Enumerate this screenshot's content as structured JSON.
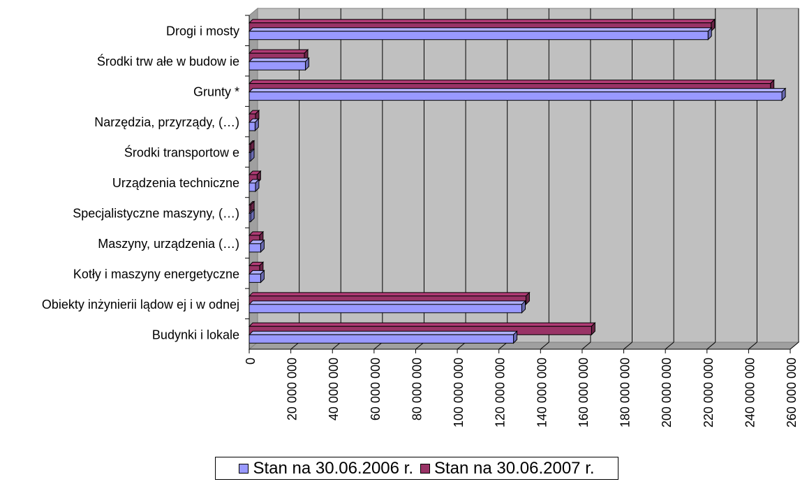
{
  "chart_data": {
    "type": "bar",
    "orientation": "horizontal",
    "three_d": true,
    "categories": [
      "Drogi i mosty",
      "Środki trw ałe w  budow ie",
      "Grunty *",
      "Narzędzia, przyrządy, (…)",
      "Środki transportow e",
      "Urządzenia techniczne",
      "Specjalistyczne maszyny, (…)",
      "Maszyny, urządzenia (…)",
      "Kotły i maszyny energetyczne",
      "Obiekty inżynierii lądow ej i w odnej",
      "Budynki i lokale"
    ],
    "series": [
      {
        "name": "Stan na 30.06.2006 r.",
        "color": "#9999ff",
        "values": [
          220500000,
          27000000,
          256000000,
          2800000,
          500000,
          3000000,
          700000,
          5500000,
          5500000,
          131000000,
          127000000
        ]
      },
      {
        "name": "Stan na 30.06.2007 r.",
        "color": "#993366",
        "values": [
          222000000,
          26500000,
          250500000,
          3000000,
          500000,
          3800000,
          700000,
          5000000,
          5000000,
          133000000,
          164500000
        ]
      }
    ],
    "xlim": [
      0,
      260000000
    ],
    "xticks": [
      0,
      20000000,
      40000000,
      60000000,
      80000000,
      100000000,
      120000000,
      140000000,
      160000000,
      180000000,
      200000000,
      220000000,
      240000000,
      260000000
    ],
    "xtick_labels": [
      "0",
      "20 000 000",
      "40 000 000",
      "60 000 000",
      "80 000 000",
      "100 000 000",
      "120 000 000",
      "140 000 000",
      "160 000 000",
      "180 000 000",
      "200 000 000",
      "220 000 000",
      "240 000 000",
      "260 000 000"
    ],
    "grid": "vertical",
    "legend_position": "bottom"
  }
}
